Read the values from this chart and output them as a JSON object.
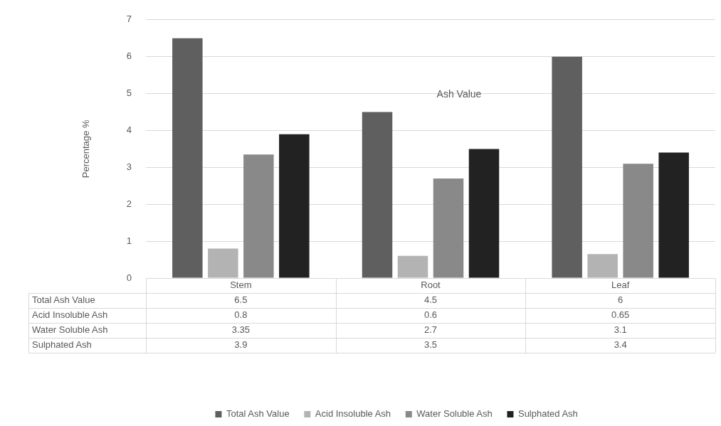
{
  "chart_data": {
    "type": "bar",
    "title": "Ash Value",
    "ylabel": "Percentage %",
    "categories": [
      "Stem",
      "Root",
      "Leaf"
    ],
    "series": [
      {
        "name": "Total Ash Value",
        "color": "#5f5f5f",
        "values": [
          6.5,
          4.5,
          6
        ]
      },
      {
        "name": "Acid Insoluble Ash",
        "color": "#b3b3b3",
        "values": [
          0.8,
          0.6,
          0.65
        ]
      },
      {
        "name": "Water Soluble Ash",
        "color": "#898989",
        "values": [
          3.35,
          2.7,
          3.1
        ]
      },
      {
        "name": "Sulphated Ash",
        "color": "#222222",
        "values": [
          3.9,
          3.5,
          3.4
        ]
      }
    ],
    "ylim": [
      0,
      7
    ],
    "yticks": [
      0,
      1,
      2,
      3,
      4,
      5,
      6,
      7
    ],
    "grid": "y",
    "legend": "bottom",
    "data_labels": true
  }
}
